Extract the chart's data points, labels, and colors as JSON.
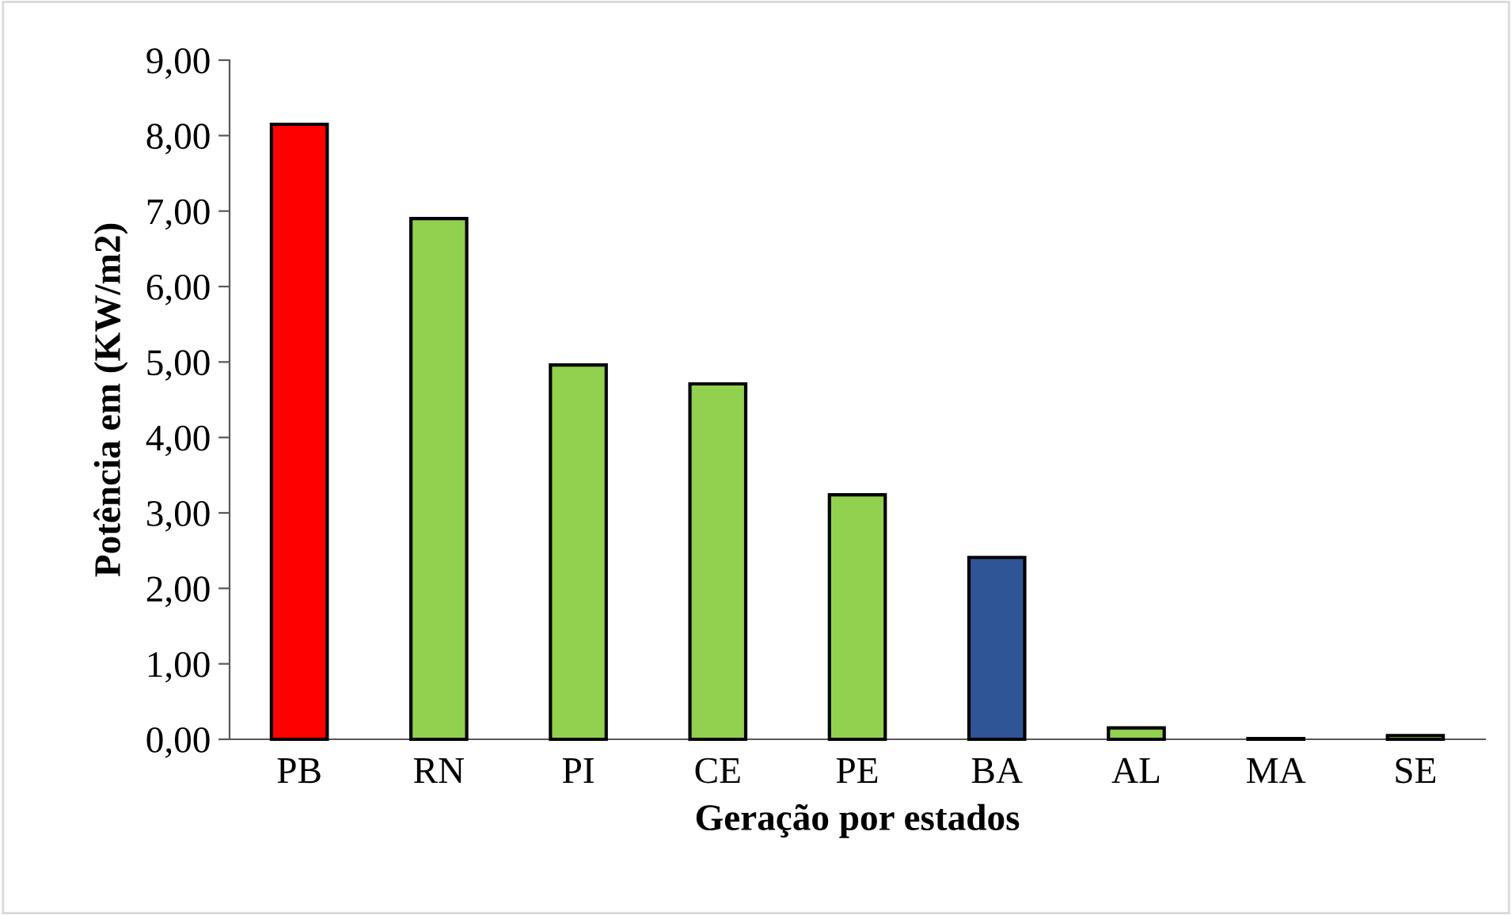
{
  "chart_data": {
    "type": "bar",
    "xlabel": "Geração por estados",
    "ylabel": "Potência em (KW/m2)",
    "categories": [
      "PB",
      "RN",
      "PI",
      "CE",
      "PE",
      "BA",
      "AL",
      "MA",
      "SE"
    ],
    "values": [
      8.15,
      6.9,
      4.96,
      4.71,
      3.24,
      2.41,
      0.15,
      0.01,
      0.05
    ],
    "colors": [
      "#ff0000",
      "#92d050",
      "#92d050",
      "#92d050",
      "#92d050",
      "#2f5597",
      "#92d050",
      "#92d050",
      "#92d050"
    ],
    "ylim": [
      0,
      9
    ],
    "yticks": [
      {
        "value": 0,
        "label": "0,00"
      },
      {
        "value": 1,
        "label": "1,00"
      },
      {
        "value": 2,
        "label": "2,00"
      },
      {
        "value": 3,
        "label": "3,00"
      },
      {
        "value": 4,
        "label": "4,00"
      },
      {
        "value": 5,
        "label": "5,00"
      },
      {
        "value": 6,
        "label": "6,00"
      },
      {
        "value": 7,
        "label": "7,00"
      },
      {
        "value": 8,
        "label": "8,00"
      },
      {
        "value": 9,
        "label": "9,00"
      }
    ],
    "grid": false,
    "legend": false
  }
}
